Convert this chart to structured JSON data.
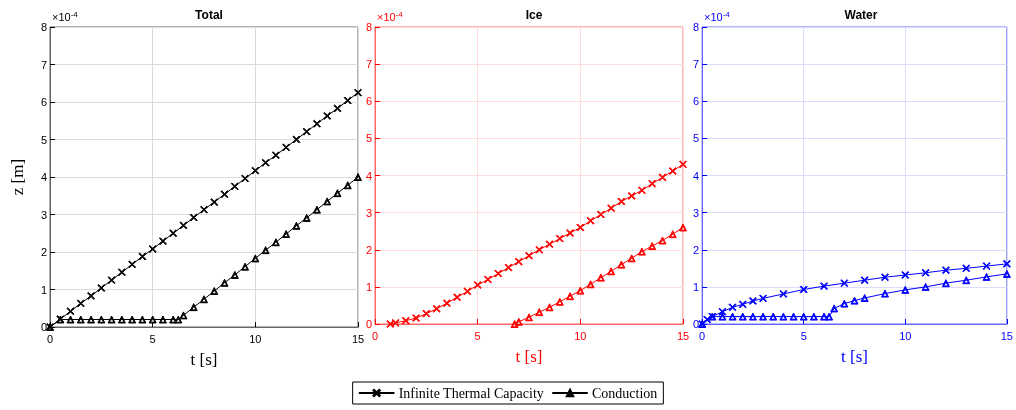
{
  "chart_data": [
    {
      "type": "line",
      "title": "Total",
      "xlabel": "t [s]",
      "ylabel": "z [m]",
      "annotations": [
        "×10$^{-4}$"
      ],
      "xlim": [
        0,
        15
      ],
      "xticks": [
        0,
        5,
        10,
        15
      ],
      "ylim": [
        0,
        8
      ],
      "yticks": [
        0,
        1,
        2,
        3,
        4,
        5,
        6,
        7,
        8
      ],
      "grid": true,
      "legend": "bottom",
      "line_style": "solid",
      "series": [
        {
          "name": "Infinite Thermal Capacity",
          "color": "#000000",
          "marker": "cross",
          "x": [
            0,
            0.5,
            1,
            1.5,
            2,
            2.5,
            3,
            3.5,
            4,
            4.5,
            5,
            5.5,
            6,
            6.5,
            7,
            7.5,
            8,
            8.5,
            9,
            9.5,
            10,
            10.5,
            11,
            11.5,
            12,
            12.5,
            13,
            13.5,
            14,
            14.5,
            15
          ],
          "values": [
            0,
            0.21,
            0.42,
            0.63,
            0.83,
            1.04,
            1.25,
            1.46,
            1.67,
            1.88,
            2.08,
            2.29,
            2.5,
            2.71,
            2.92,
            3.13,
            3.33,
            3.54,
            3.75,
            3.96,
            4.17,
            4.38,
            4.58,
            4.79,
            5,
            5.21,
            5.42,
            5.63,
            5.83,
            6.04,
            6.25
          ]
        },
        {
          "name": "Conduction",
          "color": "#000000",
          "marker": "triangle",
          "x": [
            0,
            0.5,
            1,
            1.5,
            2,
            2.5,
            3,
            3.5,
            4,
            4.5,
            5,
            5.5,
            6,
            6.25,
            6.5,
            7,
            7.5,
            8,
            8.5,
            9,
            9.5,
            10,
            10.5,
            11,
            11.5,
            12,
            12.5,
            13,
            13.5,
            14,
            14.5,
            15
          ],
          "values": [
            0,
            0.2,
            0.2,
            0.2,
            0.2,
            0.2,
            0.2,
            0.2,
            0.2,
            0.2,
            0.2,
            0.2,
            0.2,
            0.2,
            0.31,
            0.53,
            0.74,
            0.96,
            1.18,
            1.39,
            1.61,
            1.83,
            2.05,
            2.26,
            2.48,
            2.7,
            2.91,
            3.13,
            3.35,
            3.57,
            3.78,
            4.0
          ]
        }
      ]
    },
    {
      "type": "line",
      "title": "Ice",
      "xlabel": "t [s]",
      "annotations": [
        "×10$^{-4}$"
      ],
      "xlim": [
        0,
        15
      ],
      "xticks": [
        0,
        5,
        10,
        15
      ],
      "ylim": [
        0,
        8
      ],
      "yticks": [
        0,
        1,
        2,
        3,
        4,
        5,
        6,
        7,
        8
      ],
      "grid": true,
      "line_style": "solid",
      "series": [
        {
          "color": "#ff0000",
          "marker": "cross",
          "x": [
            0.75,
            1,
            1.5,
            2,
            2.5,
            3,
            3.5,
            4,
            4.5,
            5,
            5.5,
            6,
            6.5,
            7,
            7.5,
            8,
            8.5,
            9,
            9.5,
            10,
            10.5,
            11,
            11.5,
            12,
            12.5,
            13,
            13.5,
            14,
            14.5,
            15
          ],
          "values": [
            0,
            0.03,
            0.09,
            0.16,
            0.28,
            0.41,
            0.56,
            0.72,
            0.88,
            1.05,
            1.2,
            1.36,
            1.52,
            1.68,
            1.84,
            2.0,
            2.15,
            2.3,
            2.45,
            2.6,
            2.78,
            2.95,
            3.12,
            3.3,
            3.45,
            3.6,
            3.78,
            3.95,
            4.12,
            4.3
          ]
        },
        {
          "color": "#ff0000",
          "marker": "triangle",
          "x": [
            6.8,
            7,
            7.5,
            8,
            8.5,
            9,
            9.5,
            10,
            10.5,
            11,
            11.5,
            12,
            12.5,
            13,
            13.5,
            14,
            14.5,
            15
          ],
          "values": [
            0,
            0.06,
            0.18,
            0.32,
            0.45,
            0.6,
            0.75,
            0.9,
            1.07,
            1.25,
            1.42,
            1.6,
            1.77,
            1.95,
            2.1,
            2.25,
            2.42,
            2.6
          ]
        }
      ]
    },
    {
      "type": "line",
      "title": "Water",
      "xlabel": "t [s]",
      "annotations": [
        "×10$^{-4}$"
      ],
      "xlim": [
        0,
        15
      ],
      "xticks": [
        0,
        5,
        10,
        15
      ],
      "ylim": [
        0,
        8
      ],
      "yticks": [
        0,
        1,
        2,
        3,
        4,
        5,
        6,
        7,
        8
      ],
      "grid": true,
      "line_style": "solid",
      "series": [
        {
          "color": "#0000ff",
          "marker": "cross",
          "x": [
            0,
            0.25,
            0.5,
            1,
            1.5,
            2,
            2.5,
            3,
            4,
            5,
            6,
            7,
            8,
            9,
            10,
            11,
            12,
            13,
            14,
            15
          ],
          "values": [
            0,
            0.12,
            0.2,
            0.33,
            0.45,
            0.53,
            0.62,
            0.69,
            0.81,
            0.93,
            1.02,
            1.1,
            1.18,
            1.26,
            1.32,
            1.38,
            1.45,
            1.5,
            1.56,
            1.62
          ]
        },
        {
          "color": "#0000ff",
          "marker": "triangle",
          "x": [
            0,
            0.5,
            1,
            1.5,
            2,
            2.5,
            3,
            3.5,
            4,
            4.5,
            5,
            5.5,
            6,
            6.25,
            6.5,
            7,
            7.5,
            8,
            9,
            10,
            11,
            12,
            13,
            14,
            15
          ],
          "values": [
            0,
            0.2,
            0.2,
            0.2,
            0.2,
            0.2,
            0.2,
            0.2,
            0.2,
            0.2,
            0.2,
            0.2,
            0.2,
            0.2,
            0.42,
            0.55,
            0.63,
            0.7,
            0.82,
            0.92,
            1.0,
            1.1,
            1.18,
            1.27,
            1.35
          ]
        }
      ]
    }
  ]
}
